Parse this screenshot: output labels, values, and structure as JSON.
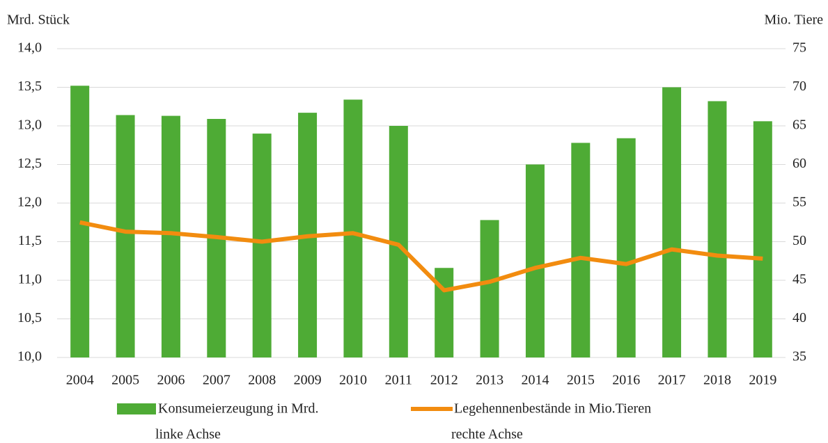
{
  "chart_data": {
    "type": "combo",
    "y_label": "Mrd. Stück",
    "y2_label": "Mio. Tiere",
    "categories": [
      "2004",
      "2005",
      "2006",
      "2007",
      "2008",
      "2009",
      "2010",
      "2011",
      "2012",
      "2013",
      "2014",
      "2015",
      "2016",
      "2017",
      "2018",
      "2019"
    ],
    "series": [
      {
        "name": "Konsumeierzeugung in Mrd.",
        "legend_note": "linke Achse",
        "type": "bar",
        "color": "#4eab35",
        "values": [
          13.52,
          13.14,
          13.13,
          13.09,
          12.9,
          13.17,
          13.34,
          13.0,
          11.16,
          11.78,
          12.5,
          12.78,
          12.84,
          13.5,
          13.32,
          13.06
        ]
      },
      {
        "name": "Legehennenbestände in Mio.Tieren",
        "legend_note": "rechte Achse",
        "type": "line",
        "axis": "y2",
        "color": "#f28c0f",
        "values": [
          52.5,
          51.3,
          51.1,
          50.6,
          50.0,
          50.7,
          51.1,
          49.6,
          43.7,
          44.8,
          46.6,
          47.9,
          47.1,
          49.0,
          48.2,
          47.8
        ]
      }
    ],
    "ylim": [
      10,
      14
    ],
    "yticks": [
      {
        "value": 10,
        "label": "10,0"
      },
      {
        "value": 10.5,
        "label": "10,5"
      },
      {
        "value": 11,
        "label": "11,0"
      },
      {
        "value": 11.5,
        "label": "11,5"
      },
      {
        "value": 12,
        "label": "12,0"
      },
      {
        "value": 12.5,
        "label": "12,5"
      },
      {
        "value": 13,
        "label": "13,0"
      },
      {
        "value": 13.5,
        "label": "13,5"
      },
      {
        "value": 14,
        "label": "14,0"
      }
    ],
    "y2lim": [
      35,
      75
    ],
    "y2ticks": [
      35,
      40,
      45,
      50,
      55,
      60,
      65,
      70,
      75
    ],
    "grid": true,
    "legend": "bottom"
  }
}
